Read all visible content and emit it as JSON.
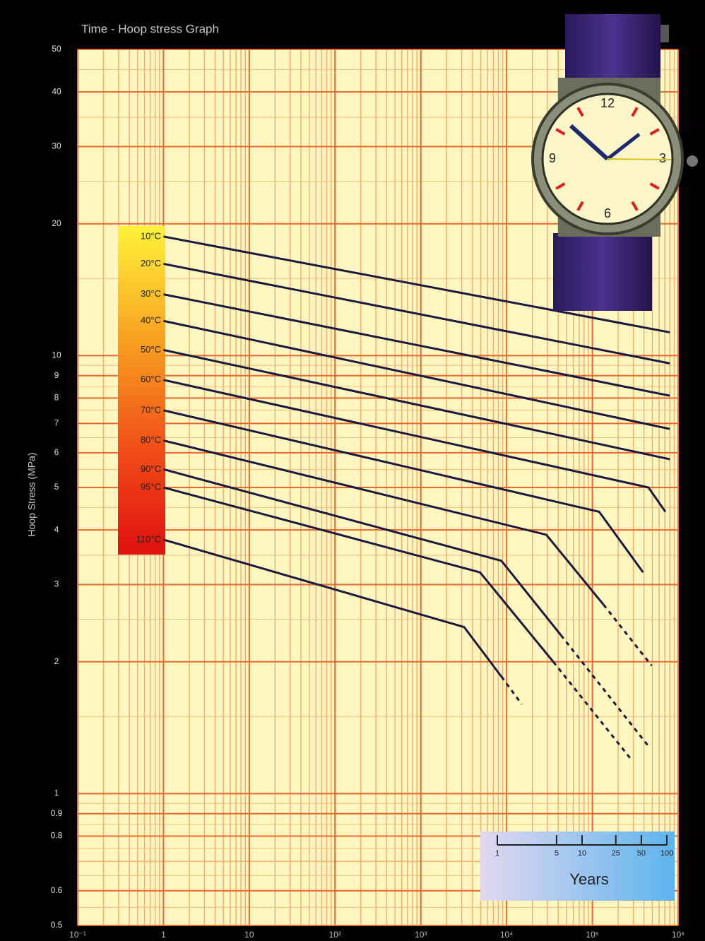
{
  "chart_data": {
    "type": "line",
    "title": "Time - Hoop stress Graph",
    "y_label": "Hoop Stress (MPa)",
    "log_x": true,
    "log_y": true,
    "grid": true,
    "xlim": [
      0.1,
      1000000
    ],
    "ylim": [
      0.5,
      50
    ],
    "xticks": [
      {
        "value": 0.1,
        "label": "10⁻¹"
      },
      1,
      10,
      {
        "value": 100,
        "label": "10²"
      },
      {
        "value": 1000,
        "label": "10³"
      },
      {
        "value": 10000,
        "label": "10⁴"
      },
      {
        "value": 100000,
        "label": "10⁵"
      },
      {
        "value": 1000000,
        "label": "10⁶"
      }
    ],
    "yticks": [
      0.5,
      0.6,
      0.8,
      0.9,
      1,
      2,
      3,
      4,
      5,
      6,
      7,
      8,
      9,
      10,
      20,
      30,
      40,
      50
    ],
    "series": [
      {
        "name": "10°C",
        "color": "#1a1a40",
        "x": [
          1,
          800000
        ],
        "values": [
          18.7,
          11.3
        ]
      },
      {
        "name": "20°C",
        "color": "#1a1a40",
        "x": [
          1,
          800000
        ],
        "values": [
          16.2,
          9.6
        ]
      },
      {
        "name": "30°C",
        "color": "#1a1a40",
        "x": [
          1,
          800000
        ],
        "values": [
          13.8,
          8.1
        ]
      },
      {
        "name": "40°C",
        "color": "#1a1a40",
        "x": [
          1,
          800000
        ],
        "values": [
          12.0,
          6.8
        ]
      },
      {
        "name": "50°C",
        "color": "#1a1a40",
        "x": [
          1,
          800000
        ],
        "values": [
          10.3,
          5.8
        ]
      },
      {
        "name": "60°C",
        "color": "#1a1a40",
        "x": [
          1,
          450000,
          710000
        ],
        "values": [
          8.8,
          5.0,
          4.4
        ]
      },
      {
        "name": "70°C",
        "color": "#1a1a40",
        "x": [
          1,
          120000,
          390000
        ],
        "values": [
          7.5,
          4.4,
          3.2
        ]
      },
      {
        "name": "80°C",
        "color": "#1a1a40",
        "x": [
          1,
          29000,
          135000,
          490000
        ],
        "values": [
          6.4,
          3.9,
          2.7,
          1.96
        ],
        "dashed_from": 2
      },
      {
        "name": "90°C",
        "color": "#1a1a40",
        "x": [
          1,
          8700,
          43000,
          470000
        ],
        "values": [
          5.5,
          3.4,
          2.3,
          1.27
        ],
        "dashed_from": 2
      },
      {
        "name": "95°C",
        "color": "#1a1a40",
        "x": [
          1,
          4900,
          35000,
          290000
        ],
        "values": [
          5.0,
          3.2,
          2.0,
          1.19
        ],
        "dashed_from": 2
      },
      {
        "name": "110°C",
        "color": "#1a1a40",
        "x": [
          1,
          3200,
          8700,
          15000
        ],
        "values": [
          3.8,
          2.4,
          1.85,
          1.6
        ],
        "dashed_from": 2
      }
    ],
    "years_scale": {
      "label": "Years",
      "ticks": [
        1,
        5,
        10,
        25,
        50,
        100
      ]
    },
    "watch": {
      "numerals": [
        "12",
        "3",
        "6",
        "9"
      ]
    }
  }
}
